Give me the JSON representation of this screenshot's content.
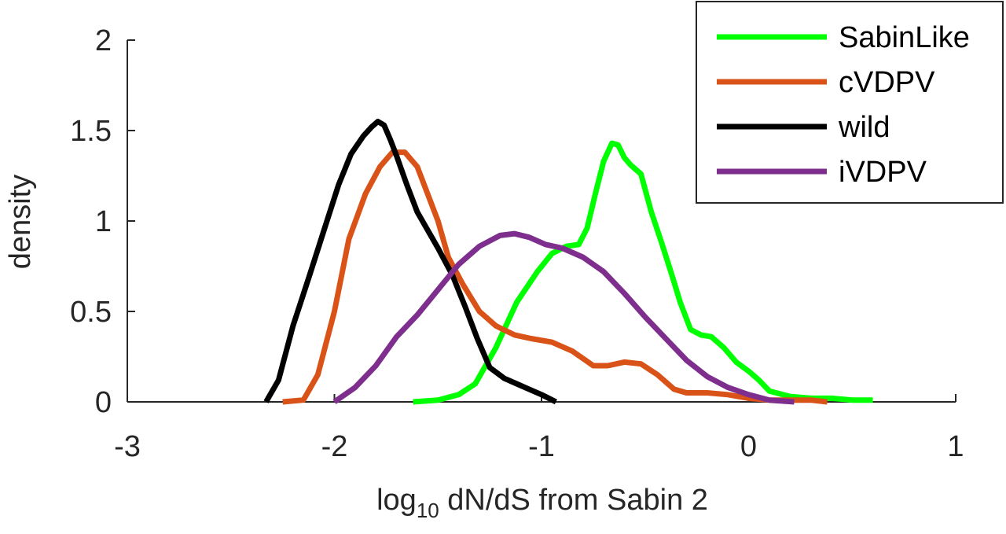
{
  "chart_data": {
    "type": "line",
    "title": "",
    "xlabel_main": "log",
    "xlabel_sub": "10",
    "xlabel_rest": " dN/dS from Sabin 2",
    "ylabel": "density",
    "xlim": [
      -3,
      1
    ],
    "ylim": [
      0,
      2
    ],
    "xticks": [
      -3,
      -2,
      -1,
      0,
      1
    ],
    "yticks": [
      0,
      0.5,
      1,
      1.5,
      2
    ],
    "xtick_labels": [
      "-3",
      "-2",
      "-1",
      "0",
      "1"
    ],
    "ytick_labels": [
      "0",
      "0.5",
      "1",
      "1.5",
      "2"
    ],
    "grid": false,
    "legend_position": "top-right",
    "series": [
      {
        "name": "SabinLike",
        "color": "#00ff00",
        "x": [
          -1.62,
          -1.5,
          -1.4,
          -1.32,
          -1.22,
          -1.12,
          -1.02,
          -0.95,
          -0.88,
          -0.82,
          -0.78,
          -0.74,
          -0.7,
          -0.66,
          -0.63,
          -0.6,
          -0.57,
          -0.52,
          -0.47,
          -0.42,
          -0.37,
          -0.33,
          -0.28,
          -0.23,
          -0.18,
          -0.12,
          -0.06,
          0.0,
          0.05,
          0.1,
          0.2,
          0.3,
          0.4,
          0.5,
          0.6
        ],
        "y": [
          0.0,
          0.01,
          0.04,
          0.1,
          0.3,
          0.55,
          0.72,
          0.82,
          0.86,
          0.87,
          0.96,
          1.15,
          1.33,
          1.43,
          1.42,
          1.35,
          1.31,
          1.26,
          1.05,
          0.88,
          0.7,
          0.55,
          0.4,
          0.37,
          0.36,
          0.3,
          0.22,
          0.17,
          0.12,
          0.06,
          0.03,
          0.02,
          0.02,
          0.01,
          0.01
        ]
      },
      {
        "name": "cVDPV",
        "color": "#d95319",
        "x": [
          -2.25,
          -2.15,
          -2.08,
          -2.0,
          -1.93,
          -1.85,
          -1.78,
          -1.72,
          -1.66,
          -1.6,
          -1.55,
          -1.5,
          -1.45,
          -1.38,
          -1.3,
          -1.22,
          -1.13,
          -1.05,
          -0.95,
          -0.85,
          -0.75,
          -0.68,
          -0.6,
          -0.52,
          -0.44,
          -0.36,
          -0.3,
          -0.2,
          -0.1,
          0.0,
          0.1,
          0.2,
          0.3,
          0.38
        ],
        "y": [
          0.0,
          0.01,
          0.15,
          0.5,
          0.9,
          1.15,
          1.3,
          1.38,
          1.38,
          1.3,
          1.15,
          1.0,
          0.8,
          0.65,
          0.5,
          0.42,
          0.37,
          0.35,
          0.33,
          0.28,
          0.2,
          0.2,
          0.22,
          0.21,
          0.15,
          0.07,
          0.05,
          0.05,
          0.04,
          0.02,
          0.01,
          0.01,
          0.01,
          0.0
        ]
      },
      {
        "name": "wild",
        "color": "#000000",
        "x": [
          -2.33,
          -2.27,
          -2.2,
          -2.12,
          -2.05,
          -1.98,
          -1.92,
          -1.86,
          -1.82,
          -1.79,
          -1.76,
          -1.73,
          -1.7,
          -1.65,
          -1.6,
          -1.55,
          -1.5,
          -1.43,
          -1.37,
          -1.31,
          -1.25,
          -1.18,
          -1.12,
          -1.06,
          -1.0,
          -0.93
        ],
        "y": [
          0.0,
          0.12,
          0.42,
          0.7,
          0.95,
          1.2,
          1.37,
          1.47,
          1.52,
          1.55,
          1.53,
          1.45,
          1.36,
          1.2,
          1.05,
          0.95,
          0.85,
          0.7,
          0.53,
          0.35,
          0.19,
          0.13,
          0.1,
          0.07,
          0.04,
          0.0
        ]
      },
      {
        "name": "iVDPV",
        "color": "#7e2f8e",
        "x": [
          -2.0,
          -1.9,
          -1.8,
          -1.7,
          -1.6,
          -1.5,
          -1.4,
          -1.3,
          -1.2,
          -1.13,
          -1.06,
          -0.98,
          -0.9,
          -0.8,
          -0.7,
          -0.6,
          -0.5,
          -0.4,
          -0.3,
          -0.2,
          -0.1,
          0.0,
          0.1,
          0.22
        ],
        "y": [
          0.0,
          0.08,
          0.2,
          0.36,
          0.48,
          0.62,
          0.76,
          0.86,
          0.92,
          0.93,
          0.91,
          0.87,
          0.85,
          0.8,
          0.72,
          0.6,
          0.47,
          0.35,
          0.23,
          0.14,
          0.08,
          0.04,
          0.01,
          0.0
        ]
      }
    ]
  }
}
